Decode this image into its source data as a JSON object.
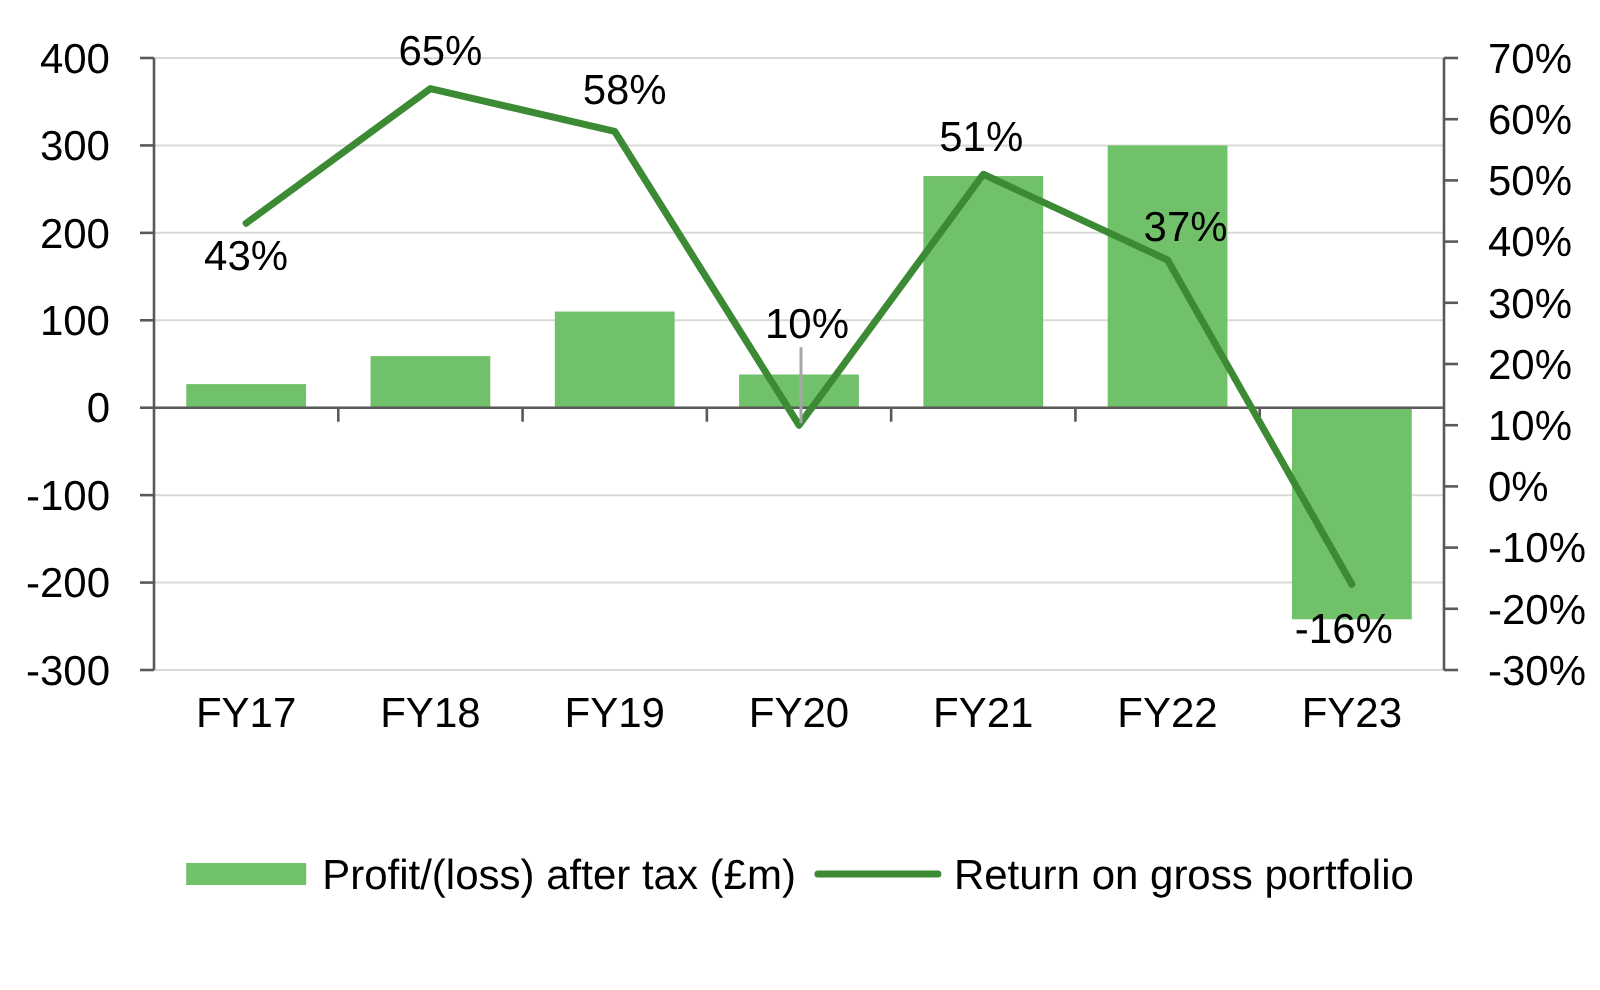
{
  "chart_data": {
    "type": "bar",
    "categories": [
      "FY17",
      "FY18",
      "FY19",
      "FY20",
      "FY21",
      "FY22",
      "FY23"
    ],
    "series": [
      {
        "name": "Profit/(loss) after tax (£m)",
        "color": "#71c16a",
        "values": [
          27,
          59,
          110,
          38,
          265,
          300,
          -242
        ]
      },
      {
        "name": "Return on gross portfolio",
        "type": "line",
        "axis": "y2",
        "color": "#3d8a35",
        "values": [
          43,
          65,
          58,
          10,
          51,
          37,
          -16
        ],
        "value_labels": [
          "43%",
          "65%",
          "58%",
          "10%",
          "51%",
          "37%",
          "-16%"
        ]
      }
    ],
    "ylim": [
      -300,
      400
    ],
    "yticks": [
      -300,
      -200,
      -100,
      0,
      100,
      200,
      300,
      400
    ],
    "y2lim": [
      -30,
      70
    ],
    "y2ticks": [
      {
        "value": -30,
        "label": "-30%"
      },
      {
        "value": -20,
        "label": "-20%"
      },
      {
        "value": -10,
        "label": "-10%"
      },
      {
        "value": 0,
        "label": "0%"
      },
      {
        "value": 10,
        "label": "10%"
      },
      {
        "value": 20,
        "label": "20%"
      },
      {
        "value": 30,
        "label": "30%"
      },
      {
        "value": 40,
        "label": "40%"
      },
      {
        "value": 50,
        "label": "50%"
      },
      {
        "value": 60,
        "label": "60%"
      },
      {
        "value": 70,
        "label": "70%"
      }
    ],
    "grid": "y",
    "legend": "bottom"
  }
}
